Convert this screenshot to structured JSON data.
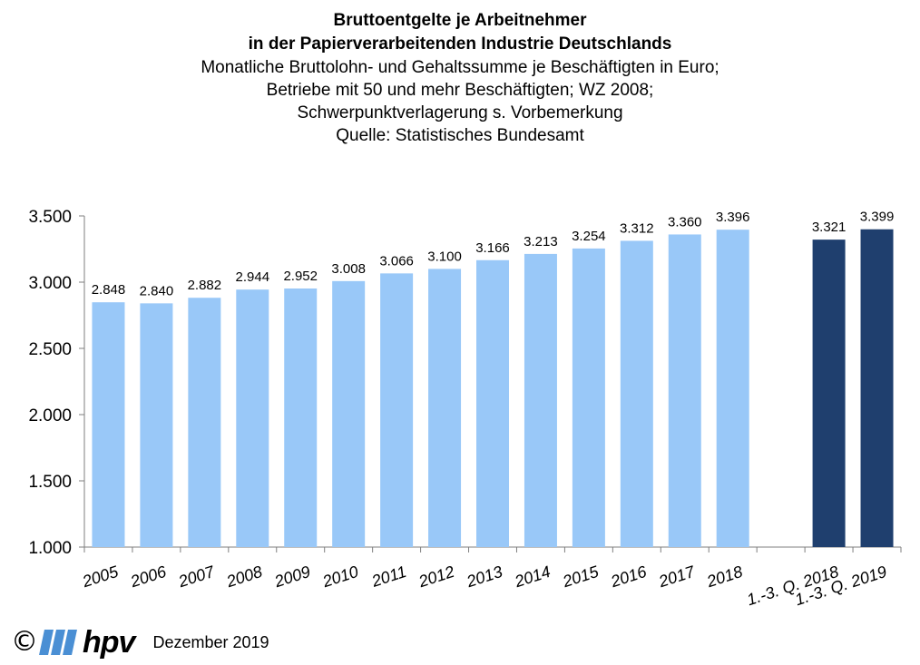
{
  "chart_data": {
    "type": "bar",
    "title": "Bruttoentgelte je Arbeitnehmer",
    "title2": "in der Papierverarbeitenden Industrie Deutschlands",
    "subtitle": [
      "Monatliche Bruttolohn- und Gehaltssumme je Beschäftigten in Euro;",
      "Betriebe mit 50 und mehr Beschäftigten; WZ 2008;",
      "Schwerpunktverlagerung s. Vorbemerkung",
      "Quelle: Statistisches Bundesamt"
    ],
    "categories": [
      "2005",
      "2006",
      "2007",
      "2008",
      "2009",
      "2010",
      "2011",
      "2012",
      "2013",
      "2014",
      "2015",
      "2016",
      "2017",
      "2018",
      "",
      "1.-3. Q. 2018",
      "1.-3. Q. 2019"
    ],
    "values": [
      2848,
      2840,
      2882,
      2944,
      2952,
      3008,
      3066,
      3100,
      3166,
      3213,
      3254,
      3312,
      3360,
      3396,
      null,
      3321,
      3399
    ],
    "value_labels": [
      "2.848",
      "2.840",
      "2.882",
      "2.944",
      "2.952",
      "3.008",
      "3.066",
      "3.100",
      "3.166",
      "3.213",
      "3.254",
      "3.312",
      "3.360",
      "3.396",
      "",
      "3.321",
      "3.399"
    ],
    "ylim": [
      1000,
      3500
    ],
    "yticks": [
      1000,
      1500,
      2000,
      2500,
      3000,
      3500
    ],
    "ytick_labels": [
      "1.000",
      "1.500",
      "2.000",
      "2.500",
      "3.000",
      "3.500"
    ],
    "colors": {
      "annual": "#99c8f8",
      "quarterly": "#1f3f6e",
      "axis": "#7f7f7f"
    },
    "xlabel": "",
    "ylabel": "",
    "grid": false
  },
  "footer": {
    "copyright_symbol": "©",
    "logo": "hpv",
    "date": "Dezember 2019"
  }
}
